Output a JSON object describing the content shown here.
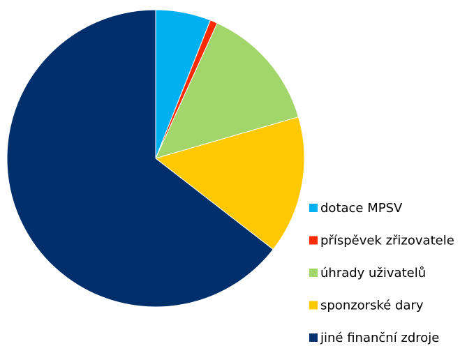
{
  "chart_data": {
    "type": "pie",
    "title": "",
    "legend_position": "right",
    "start_angle_deg": 0,
    "direction": "clockwise",
    "slices": [
      {
        "label": "dotace MPSV",
        "value": 6.0,
        "color": "#00B0F0"
      },
      {
        "label": "příspěvek zřizovatele",
        "value": 0.8,
        "color": "#FF2A00"
      },
      {
        "label": "úhrady uživatelů",
        "value": 13.7,
        "color": "#A2D56A"
      },
      {
        "label": "sponzorské dary",
        "value": 15.0,
        "color": "#FFC800"
      },
      {
        "label": "jiné finanční zdroje",
        "value": 64.5,
        "color": "#002F6C"
      }
    ]
  }
}
